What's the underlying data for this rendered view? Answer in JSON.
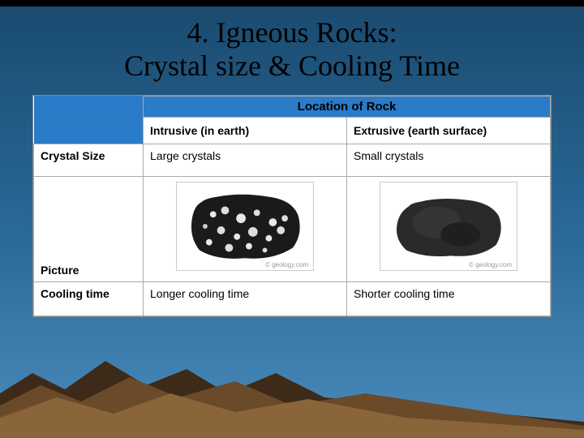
{
  "title": "4. Igneous Rocks:\nCrystal size & Cooling Time",
  "table": {
    "location_header": "Location of Rock",
    "columns": [
      "Intrusive (in earth)",
      "Extrusive (earth surface)"
    ],
    "rows": [
      {
        "label": "Crystal Size",
        "values": [
          "Large crystals",
          "Small crystals"
        ]
      },
      {
        "label": "Picture",
        "values": [
          "",
          ""
        ]
      },
      {
        "label": "Cooling time",
        "values": [
          "Longer cooling time",
          "Shorter cooling time"
        ]
      }
    ],
    "picture_credit": "© geology.com"
  },
  "styling": {
    "slide_width": 720,
    "slide_height": 540,
    "bg_gradient": [
      "#1a4a6e",
      "#2a6a9a",
      "#3a7aaa",
      "#4a8aba"
    ],
    "title_font": "Georgia",
    "title_fontsize": 36,
    "title_color": "#000000",
    "table_bg": "#ffffff",
    "header_bg": "#2a7bc8",
    "cell_font": "Arial",
    "cell_fontsize": 14,
    "border_color": "#aaaaaa",
    "mountain_colors": {
      "dark": "#3d2a18",
      "mid": "#6b4a2a",
      "light": "#8a653a"
    }
  }
}
